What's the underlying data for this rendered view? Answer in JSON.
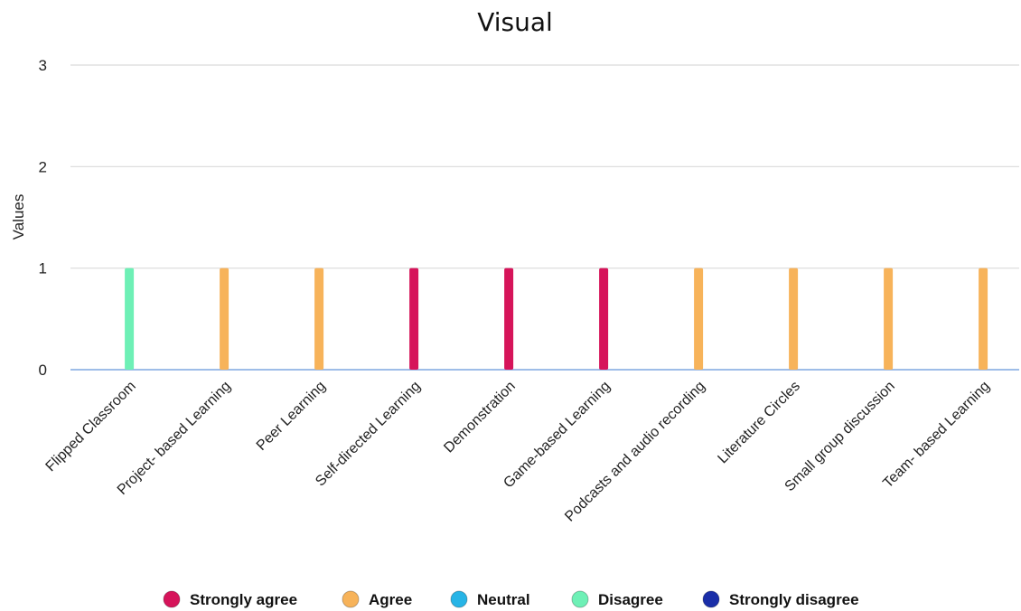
{
  "chart_data": {
    "type": "bar",
    "title": "Visual",
    "xlabel": "",
    "ylabel": "Values",
    "ylim": [
      0,
      3
    ],
    "yticks": [
      0,
      1,
      2,
      3
    ],
    "grid": true,
    "legend_position": "bottom",
    "categories": [
      "Flipped Classroom",
      "Project- based Learning",
      "Peer Learning",
      "Self-directed Learning",
      "Demonstration",
      "Game-based Learning",
      "Podcasts and audio recording",
      "Literature Circles",
      "Small group discussion",
      "Team- based Learning"
    ],
    "series": [
      {
        "name": "Strongly agree",
        "color": "#d6145a",
        "values": [
          0,
          0,
          0,
          1,
          1,
          1,
          0,
          0,
          0,
          0
        ]
      },
      {
        "name": "Agree",
        "color": "#f7b35a",
        "values": [
          0,
          1,
          1,
          0,
          0,
          0,
          1,
          1,
          1,
          1
        ]
      },
      {
        "name": "Neutral",
        "color": "#27b4e6",
        "values": [
          0,
          0,
          0,
          0,
          0,
          0,
          0,
          0,
          0,
          0
        ]
      },
      {
        "name": "Disagree",
        "color": "#6ef0b6",
        "values": [
          1,
          0,
          0,
          0,
          0,
          0,
          0,
          0,
          0,
          0
        ]
      },
      {
        "name": "Strongly disagree",
        "color": "#1a2ea8",
        "values": [
          0,
          0,
          0,
          0,
          0,
          0,
          0,
          0,
          0,
          0
        ]
      }
    ],
    "colors": {
      "gridline": "#d9d9d9",
      "baseline": "#7ea7e0"
    }
  }
}
